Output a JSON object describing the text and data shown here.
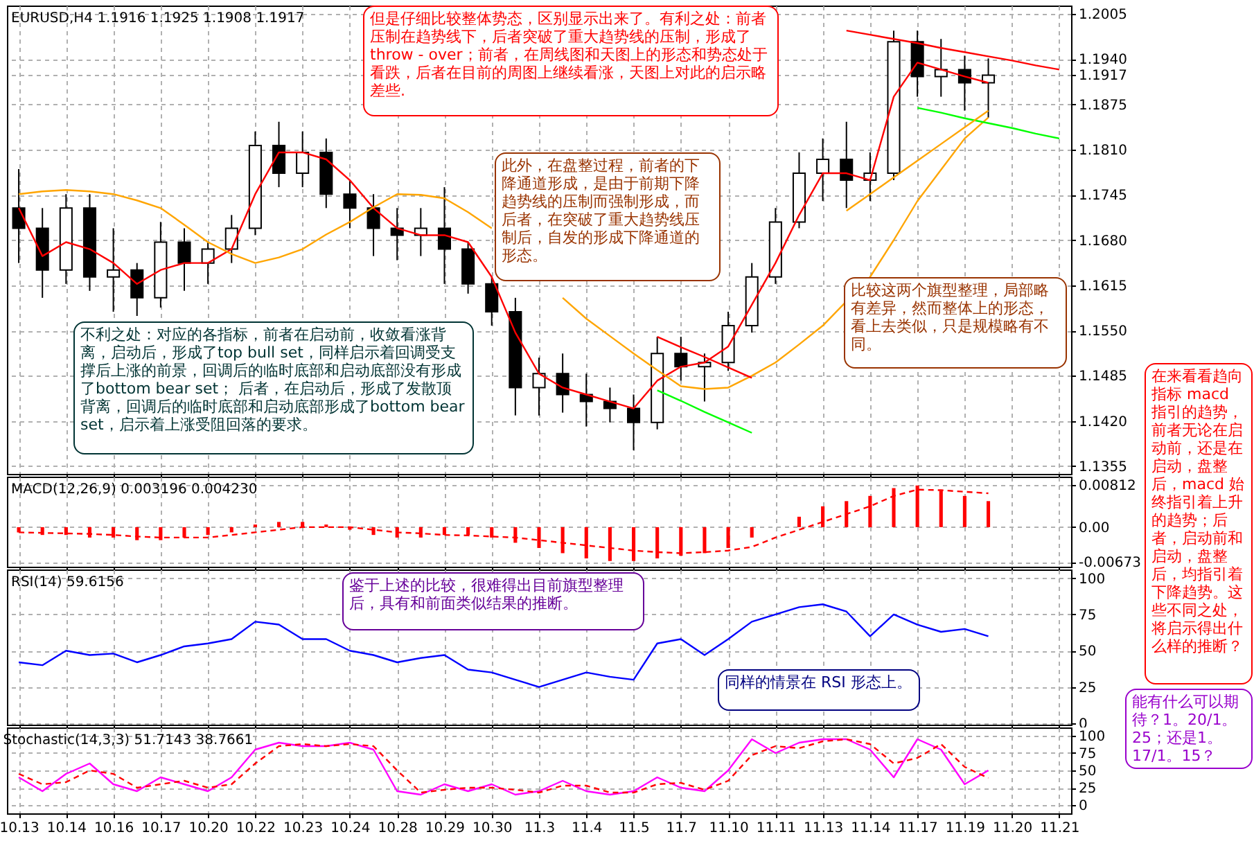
{
  "chart_data": [
    {
      "type": "candlestick",
      "title": "EURUSD,H4  1.1916 1.1925 1.1908 1.1917",
      "categories": [
        "10.13",
        null,
        "10.14",
        null,
        "10.16",
        null,
        "10.17",
        null,
        "10.20",
        null,
        "10.22",
        null,
        "10.23",
        null,
        "10.24",
        null,
        "10.28",
        null,
        "10.29",
        null,
        "10.30",
        null,
        "11.3",
        null,
        "11.4",
        null,
        "11.5",
        null,
        "11.7",
        null,
        "11.10",
        null,
        "11.11",
        null,
        "11.13",
        null,
        "11.14",
        null,
        "11.17",
        null,
        "11.19",
        null,
        "11.20",
        null,
        "11.21"
      ],
      "ohlc": [
        [
          1.1726,
          1.1782,
          1.1647,
          1.1697
        ],
        [
          1.1697,
          1.1726,
          1.1597,
          1.1637
        ],
        [
          1.1637,
          1.1746,
          1.1617,
          1.1726
        ],
        [
          1.1726,
          1.1746,
          1.1607,
          1.1627
        ],
        [
          1.1627,
          1.1697,
          1.1577,
          1.1637
        ],
        [
          1.1637,
          1.1647,
          1.1571,
          1.1597
        ],
        [
          1.1597,
          1.1706,
          1.1583,
          1.1677
        ],
        [
          1.1677,
          1.1697,
          1.1607,
          1.1647
        ],
        [
          1.1647,
          1.1677,
          1.1617,
          1.1667
        ],
        [
          1.1667,
          1.1716,
          1.1647,
          1.1697
        ],
        [
          1.1697,
          1.1836,
          1.1687,
          1.1816
        ],
        [
          1.1816,
          1.185,
          1.1756,
          1.1776
        ],
        [
          1.1776,
          1.1836,
          1.1756,
          1.1806
        ],
        [
          1.1806,
          1.1826,
          1.1726,
          1.1746
        ],
        [
          1.1746,
          1.1766,
          1.1697,
          1.1726
        ],
        [
          1.1726,
          1.1746,
          1.1657,
          1.1697
        ],
        [
          1.1697,
          1.1726,
          1.1651,
          1.1687
        ],
        [
          1.1687,
          1.1726,
          1.1657,
          1.1697
        ],
        [
          1.1697,
          1.1756,
          1.1617,
          1.1667
        ],
        [
          1.1667,
          1.1677,
          1.1603,
          1.1617
        ],
        [
          1.1617,
          1.1627,
          1.1557,
          1.1577
        ],
        [
          1.1577,
          1.1597,
          1.1428,
          1.1468
        ],
        [
          1.1468,
          1.1511,
          1.1428,
          1.1488
        ],
        [
          1.1488,
          1.1517,
          1.1432,
          1.1458
        ],
        [
          1.1458,
          1.1488,
          1.1412,
          1.1448
        ],
        [
          1.1448,
          1.1468,
          1.1418,
          1.1438
        ],
        [
          1.1438,
          1.1458,
          1.1378,
          1.1418
        ],
        [
          1.1418,
          1.1541,
          1.1408,
          1.1517
        ],
        [
          1.1517,
          1.1541,
          1.1478,
          1.1498
        ],
        [
          1.1498,
          1.1517,
          1.1448,
          1.1504
        ],
        [
          1.1504,
          1.1577,
          1.1492,
          1.1557
        ],
        [
          1.1557,
          1.1647,
          1.1547,
          1.1627
        ],
        [
          1.1627,
          1.1726,
          1.1617,
          1.1706
        ],
        [
          1.1706,
          1.1806,
          1.1697,
          1.1776
        ],
        [
          1.1776,
          1.1826,
          1.1736,
          1.1796
        ],
        [
          1.1796,
          1.185,
          1.1726,
          1.1766
        ],
        [
          1.1766,
          1.1806,
          1.1736,
          1.1776
        ],
        [
          1.1776,
          1.1981,
          1.1766,
          1.1965
        ],
        [
          1.1965,
          1.1981,
          1.1886,
          1.1915
        ],
        [
          1.1915,
          1.1969,
          1.1886,
          1.1925
        ],
        [
          1.1925,
          1.1945,
          1.1866,
          1.1906
        ],
        [
          1.1906,
          1.1941,
          1.1856,
          1.1917
        ],
        null,
        null,
        null
      ],
      "series": [
        {
          "type": "line",
          "color": "#ff0000",
          "values": [
            1.1726,
            1.1657,
            1.1677,
            1.1667,
            1.1647,
            1.1617,
            1.1637,
            1.1647,
            1.1647,
            1.1667,
            1.1746,
            1.1806,
            1.1806,
            1.1796,
            1.1766,
            1.1726,
            1.1697,
            1.1687,
            1.1687,
            1.1677,
            1.1627,
            1.1547,
            1.1488,
            1.1468,
            1.1458,
            1.1448,
            1.1438,
            1.1478,
            1.1498,
            1.1504,
            1.1527,
            1.1587,
            1.1647,
            1.1716,
            1.1776,
            1.1776,
            1.1766,
            1.1886,
            1.1935,
            1.1925,
            1.1915,
            1.1906,
            null,
            null,
            null
          ]
        },
        {
          "type": "line",
          "color": "#ffa500",
          "values": [
            1.1746,
            1.175,
            1.1752,
            1.175,
            1.1746,
            1.1737,
            1.1726,
            1.1702,
            1.1677,
            1.166,
            1.1647,
            1.1655,
            1.1667,
            1.1688,
            1.1706,
            1.1727,
            1.1746,
            1.1745,
            1.174,
            1.172,
            1.1697,
            null,
            null,
            1.1597,
            1.1567,
            1.1542,
            1.1517,
            1.1493,
            1.147,
            1.1466,
            1.1468,
            1.1485,
            1.1504,
            1.153,
            1.1557,
            1.1592,
            1.1627,
            1.168,
            1.1736,
            1.1781,
            1.1826,
            1.1856,
            null,
            null,
            null
          ]
        },
        {
          "type": "line",
          "color": "#ff0000",
          "values": [
            null,
            null,
            null,
            null,
            null,
            null,
            null,
            null,
            null,
            null,
            null,
            null,
            null,
            null,
            null,
            null,
            null,
            null,
            null,
            null,
            null,
            null,
            null,
            null,
            null,
            null,
            null,
            null,
            null,
            null,
            null,
            null,
            null,
            null,
            null,
            1.1981,
            1.1975,
            1.1969,
            1.1963,
            1.1956,
            1.195,
            1.1944,
            1.1938,
            1.1931,
            1.1925
          ]
        },
        {
          "type": "line",
          "color": "#00ff00",
          "values": [
            null,
            null,
            null,
            null,
            null,
            null,
            null,
            null,
            null,
            null,
            null,
            null,
            null,
            null,
            null,
            null,
            null,
            null,
            null,
            null,
            null,
            null,
            null,
            null,
            null,
            null,
            null,
            null,
            null,
            null,
            null,
            null,
            null,
            null,
            null,
            null,
            null,
            null,
            1.187,
            1.1863,
            1.1855,
            1.1848,
            1.1841,
            1.1833,
            1.1826
          ]
        },
        {
          "type": "line",
          "color": "#ff0000",
          "values": [
            null,
            null,
            null,
            null,
            null,
            null,
            null,
            null,
            null,
            null,
            null,
            null,
            null,
            null,
            null,
            null,
            null,
            null,
            null,
            null,
            null,
            null,
            null,
            null,
            null,
            null,
            null,
            1.1541,
            1.1526,
            1.1512,
            1.1497,
            1.1482,
            null,
            null,
            null,
            null,
            null,
            null,
            null,
            null,
            null,
            null,
            null,
            null,
            null
          ]
        },
        {
          "type": "line",
          "color": "#00ff00",
          "values": [
            null,
            null,
            null,
            null,
            null,
            null,
            null,
            null,
            null,
            null,
            null,
            null,
            null,
            null,
            null,
            null,
            null,
            null,
            null,
            null,
            null,
            null,
            null,
            null,
            null,
            null,
            null,
            1.1464,
            1.1449,
            1.1433,
            1.1418,
            1.1403,
            null,
            null,
            null,
            null,
            null,
            null,
            null,
            null,
            null,
            null,
            null,
            null,
            null
          ]
        },
        {
          "type": "line",
          "color": "#ffa500",
          "values": [
            null,
            null,
            null,
            null,
            null,
            null,
            null,
            null,
            null,
            null,
            null,
            null,
            null,
            null,
            null,
            null,
            null,
            null,
            null,
            null,
            null,
            null,
            null,
            null,
            null,
            null,
            null,
            null,
            null,
            null,
            null,
            null,
            null,
            null,
            null,
            1.1722,
            1.1746,
            1.177,
            1.1794,
            1.1818,
            1.1842,
            1.1866,
            null,
            null,
            null
          ]
        }
      ],
      "ylim": [
        1.1344,
        1.2017
      ],
      "yticks": [
        1.2005,
        {
          "value": 1.194,
          "label": "1.1940"
        },
        1.1917,
        1.1875,
        {
          "value": 1.181,
          "label": "1.1810"
        },
        1.1745,
        {
          "value": 1.168,
          "label": "1.1680"
        },
        1.1615,
        {
          "value": 1.155,
          "label": "1.1550"
        },
        1.1485,
        {
          "value": 1.142,
          "label": "1.1420"
        },
        1.1355
      ],
      "tick_labels": "y",
      "grid": true,
      "annotations": [
        "但是仔细比较整体势态，区别显示出来了。有利之处：前者压制在趋势线下，后者突破了重大趋势线的压制，形成了 throw - over；前者，在周线图和天图上的形态和势态处于看跌，后者在目前的周图上继续看涨，天图上对此的启示略差些.",
        "此外，在盘整过程，前者的下降通道形成，是由于前期下降趋势线的压制而强制形成，而后者，在突破了重大趋势线压制后，自发的形成下降通道的形态。",
        "不利之处：对应的各指标，前者在启动前，收敛看涨背离，启动后，形成了top bull set，同样启示着回调受支撑后上涨的前景，回调后的临时底部和启动底部没有形成了bottom bear set； 后者，在启动后，形成了发散顶背离，回调后的临时底部和启动底部形成了bottom bear set，启示着上涨受阻回落的要求。",
        "比较这两个旗型整理，局部略有差异，然而整体上的形态，看上去类似，只是规模略有不同。",
        "在来看看趋向指标 macd 指引的趋势，前者无论在启动前，还是在启动，盘整后，macd 始终指引着上升的趋势；后者，启动前和启动，盘整后，均指引着下降趋势。这些不同之处，将启示得出什么样的推断？",
        "能有什么可以期待？1。20/1。25；还是1。17/1。15？"
      ]
    },
    {
      "type": "bar",
      "title": "MACD(12,26,9)  0.003196  0.004230",
      "categories": [
        "10.13",
        null,
        "10.14",
        null,
        "10.16",
        null,
        "10.17",
        null,
        "10.20",
        null,
        "10.22",
        null,
        "10.23",
        null,
        "10.24",
        null,
        "10.28",
        null,
        "10.29",
        null,
        "10.30",
        null,
        "11.3",
        null,
        "11.4",
        null,
        "11.5",
        null,
        "11.7",
        null,
        "11.10",
        null,
        "11.11",
        null,
        "11.13",
        null,
        "11.14",
        null,
        "11.17",
        null,
        "11.19",
        null,
        "11.20",
        null,
        "11.21"
      ],
      "series": [
        {
          "type": "bar",
          "color": "#ff0000",
          "values": [
            -0.001,
            -0.0015,
            -0.0015,
            -0.002,
            -0.002,
            -0.0025,
            -0.0025,
            -0.002,
            -0.0015,
            -0.001,
            0.0005,
            0.001,
            0.001,
            0.0005,
            -0.0005,
            -0.0015,
            -0.002,
            -0.002,
            -0.0015,
            -0.0015,
            -0.002,
            -0.003,
            -0.004,
            -0.005,
            -0.006,
            -0.0065,
            -0.0065,
            -0.006,
            -0.0055,
            -0.005,
            -0.004,
            -0.002,
            0.0,
            0.002,
            0.004,
            0.005,
            0.006,
            0.0075,
            0.008,
            0.007,
            0.006,
            0.005,
            null,
            null,
            null
          ]
        },
        {
          "type": "line",
          "color": "#ff0000",
          "line_style": "dashed",
          "values": [
            -0.001,
            -0.0011,
            -0.0012,
            -0.0013,
            -0.0015,
            -0.0018,
            -0.002,
            -0.002,
            -0.002,
            -0.0015,
            -0.001,
            -0.0005,
            0.0,
            0.0,
            0.0,
            -0.0005,
            -0.001,
            -0.0012,
            -0.0015,
            -0.0016,
            -0.0018,
            -0.002,
            -0.0025,
            -0.003,
            -0.0035,
            -0.004,
            -0.0045,
            -0.0048,
            -0.005,
            -0.0048,
            -0.0045,
            -0.0038,
            -0.002,
            -0.0005,
            0.001,
            0.0025,
            0.004,
            0.006,
            0.0072,
            0.0071,
            0.0068,
            0.0065,
            null,
            null,
            null
          ]
        }
      ],
      "ylim": [
        -0.0076,
        0.0097
      ],
      "yticks": [
        0.00812,
        {
          "value": 0,
          "label": "0.00"
        },
        -0.00673
      ],
      "tick_labels": "y",
      "grid": true
    },
    {
      "type": "line",
      "title": "RSI(14)  59.6156",
      "categories": [
        "10.13",
        null,
        "10.14",
        null,
        "10.16",
        null,
        "10.17",
        null,
        "10.20",
        null,
        "10.22",
        null,
        "10.23",
        null,
        "10.24",
        null,
        "10.28",
        null,
        "10.29",
        null,
        "10.30",
        null,
        "11.3",
        null,
        "11.4",
        null,
        "11.5",
        null,
        "11.7",
        null,
        "11.10",
        null,
        "11.11",
        null,
        "11.13",
        null,
        "11.14",
        null,
        "11.17",
        null,
        "11.19",
        null,
        "11.20",
        null,
        "11.21"
      ],
      "series": [
        {
          "color": "#0000ff",
          "values": [
            42,
            40,
            50,
            47,
            48,
            42,
            47,
            53,
            55,
            58,
            70,
            68,
            58,
            58,
            50,
            47,
            42,
            45,
            47,
            37,
            35,
            30,
            25,
            30,
            35,
            32,
            30,
            55,
            58,
            47,
            58,
            70,
            75,
            80,
            82,
            77,
            60,
            75,
            68,
            63,
            65,
            60,
            null,
            null,
            null
          ]
        }
      ],
      "ylim": [
        -1,
        106
      ],
      "yticks": [
        0,
        25,
        50,
        75,
        100
      ],
      "tick_labels": "y",
      "grid": true,
      "annotations": [
        "鉴于上述的比较，很难得出目前旗型整理后，具有和前面类似结果的推断。",
        "同样的情景在 RSI 形态上。"
      ]
    },
    {
      "type": "line",
      "title": "Stochastic(14,3,3)  51.7143  38.7661",
      "categories": [
        "10.13",
        null,
        "10.14",
        null,
        "10.16",
        null,
        "10.17",
        null,
        "10.20",
        null,
        "10.22",
        null,
        "10.23",
        null,
        "10.24",
        null,
        "10.28",
        null,
        "10.29",
        null,
        "10.30",
        null,
        "11.3",
        null,
        "11.4",
        null,
        "11.5",
        null,
        "11.7",
        null,
        "11.10",
        null,
        "11.11",
        null,
        "11.13",
        null,
        "11.14",
        null,
        "11.17",
        null,
        "11.19",
        null,
        "11.20",
        null,
        "11.21"
      ],
      "series": [
        {
          "color": "#ff00ff",
          "values": [
            40,
            20,
            45,
            60,
            30,
            20,
            40,
            30,
            20,
            40,
            80,
            90,
            85,
            85,
            90,
            80,
            20,
            15,
            30,
            20,
            30,
            15,
            20,
            35,
            20,
            15,
            20,
            40,
            25,
            20,
            50,
            95,
            75,
            90,
            95,
            95,
            80,
            40,
            95,
            80,
            30,
            50,
            null,
            null,
            null
          ]
        },
        {
          "color": "#ff0000",
          "line_style": "dashed",
          "values": [
            45,
            30,
            33,
            50,
            45,
            25,
            30,
            35,
            25,
            30,
            60,
            85,
            88,
            85,
            88,
            85,
            50,
            18,
            22,
            25,
            25,
            22,
            18,
            28,
            28,
            18,
            18,
            30,
            32,
            22,
            35,
            72,
            85,
            82,
            92,
            95,
            88,
            60,
            68,
            88,
            55,
            39,
            null,
            null,
            null
          ]
        }
      ],
      "ylim": [
        -12,
        112
      ],
      "yticks": [
        0,
        25,
        50,
        75,
        100
      ],
      "grid": true
    }
  ]
}
